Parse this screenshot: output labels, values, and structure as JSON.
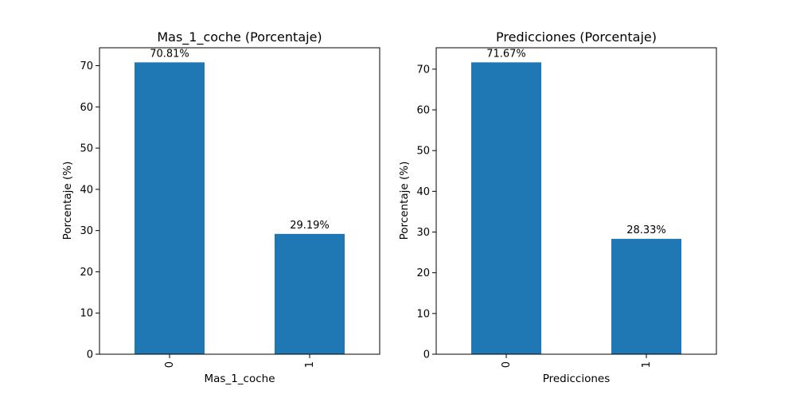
{
  "chart_data": [
    {
      "type": "bar",
      "title": "Mas_1_coche (Porcentaje)",
      "xlabel": "Mas_1_coche",
      "ylabel": "Porcentaje (%)",
      "categories": [
        "0",
        "1"
      ],
      "values": [
        70.81,
        29.19
      ],
      "data_labels": [
        "70.81%",
        "29.19%"
      ],
      "ylim": [
        0,
        74.35
      ],
      "yticks": [
        0,
        10,
        20,
        30,
        40,
        50,
        60,
        70
      ],
      "grid": false,
      "x_tick_rotation": 90,
      "bar_color": "#1f77b4"
    },
    {
      "type": "bar",
      "title": "Predicciones (Porcentaje)",
      "xlabel": "Predicciones",
      "ylabel": "Porcentaje (%)",
      "categories": [
        "0",
        "1"
      ],
      "values": [
        71.67,
        28.33
      ],
      "data_labels": [
        "71.67%",
        "28.33%"
      ],
      "ylim": [
        0,
        75.25
      ],
      "yticks": [
        0,
        10,
        20,
        30,
        40,
        50,
        60,
        70
      ],
      "grid": false,
      "x_tick_rotation": 90,
      "bar_color": "#1f77b4"
    }
  ]
}
